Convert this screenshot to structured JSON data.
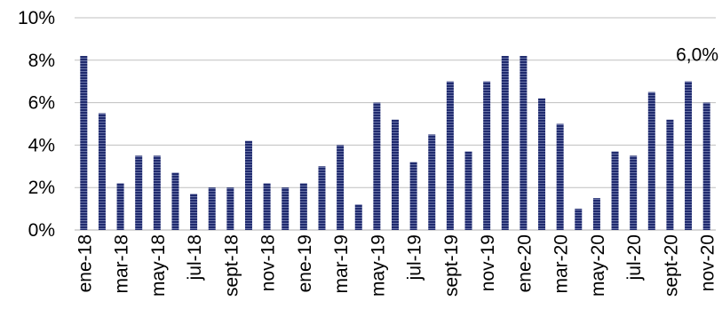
{
  "chart_data": {
    "type": "bar",
    "title": "",
    "xlabel": "",
    "ylabel": "",
    "ylim": [
      0,
      10
    ],
    "y_ticks": [
      "0%",
      "2%",
      "4%",
      "6%",
      "8%",
      "10%"
    ],
    "y_tick_values": [
      0,
      2,
      4,
      6,
      8,
      10
    ],
    "grid": true,
    "legend": "none",
    "bar_color": "#1f2a6e",
    "categories": [
      "ene-18",
      "feb-18",
      "mar-18",
      "abr-18",
      "may-18",
      "jun-18",
      "jul-18",
      "ago-18",
      "sept-18",
      "oct-18",
      "nov-18",
      "dic-18",
      "ene-19",
      "feb-19",
      "mar-19",
      "abr-19",
      "may-19",
      "jun-19",
      "jul-19",
      "ago-19",
      "sept-19",
      "oct-19",
      "nov-19",
      "dic-19",
      "ene-20",
      "feb-20",
      "mar-20",
      "abr-20",
      "may-20",
      "jun-20",
      "jul-20",
      "ago-20",
      "sept-20",
      "oct-20",
      "nov-20"
    ],
    "x_tick_labels": [
      "ene-18",
      "mar-18",
      "may-18",
      "jul-18",
      "sept-18",
      "nov-18",
      "ene-19",
      "mar-19",
      "may-19",
      "jul-19",
      "sept-19",
      "nov-19",
      "ene-20",
      "mar-20",
      "may-20",
      "jul-20",
      "sept-20",
      "nov-20"
    ],
    "values": [
      8.2,
      5.5,
      2.2,
      3.5,
      3.5,
      2.7,
      1.7,
      2.0,
      2.0,
      4.2,
      2.2,
      2.0,
      2.2,
      3.0,
      4.0,
      1.2,
      6.0,
      5.2,
      3.2,
      4.5,
      7.0,
      3.7,
      7.0,
      8.2,
      8.2,
      6.2,
      5.0,
      1.0,
      1.5,
      3.7,
      3.5,
      6.5,
      5.2,
      7.0,
      6.0
    ],
    "annotations": [
      {
        "text": "6,0%",
        "category": "nov-20"
      }
    ]
  }
}
